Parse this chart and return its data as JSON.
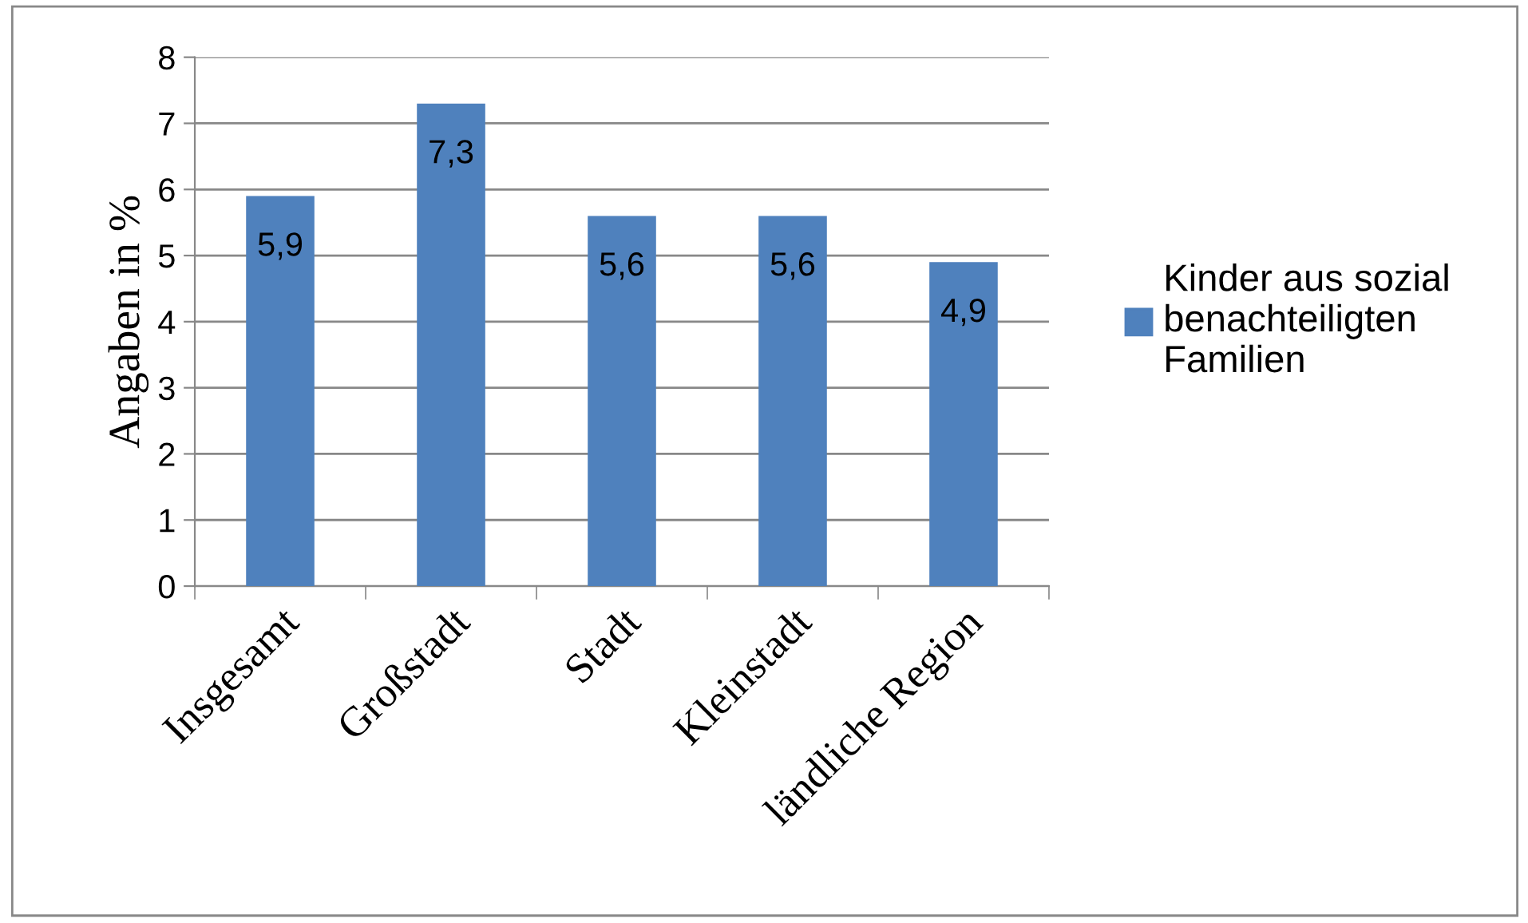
{
  "chart_data": {
    "type": "bar",
    "ylabel": "Angaben in %",
    "categories": [
      "Insgesamt",
      "Großstadt",
      "Stadt",
      "Kleinstadt",
      "ländliche Region"
    ],
    "series": [
      {
        "name": "Kinder aus sozial\nbenachteiligten\nFamilien",
        "color": "#4f81bd",
        "values": [
          5.9,
          7.3,
          5.6,
          5.6,
          4.9
        ],
        "value_labels": [
          "5,9",
          "7,3",
          "5,6",
          "5,6",
          "4,9"
        ]
      }
    ],
    "ylim": [
      0,
      8
    ],
    "yticks": [
      0,
      1,
      2,
      3,
      4,
      5,
      6,
      7,
      8
    ],
    "grid": "y",
    "legend": "right"
  }
}
